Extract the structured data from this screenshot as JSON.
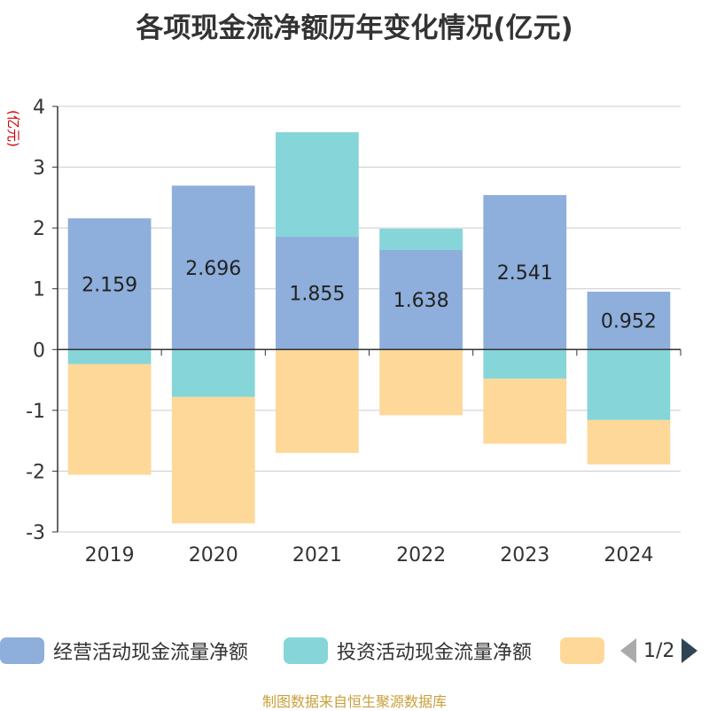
{
  "title": "各项现金流净额历年变化情况(亿元)",
  "source": "制图数据来自恒生聚源数据库",
  "legend_pager": "1/2",
  "colors": {
    "operating": "#8eaedb",
    "investing": "#86d5d8",
    "financing": "#fed898",
    "axis": "#333333",
    "grid": "#cccccc",
    "unit": "#cc0000"
  },
  "chart_data": {
    "type": "bar",
    "stacked": true,
    "title": "各项现金流净额历年变化情况(亿元)",
    "ylabel": "(亿元)",
    "ylim": [
      -3,
      4
    ],
    "yticks": [
      4,
      3,
      2,
      1,
      0,
      -1,
      -2,
      -3
    ],
    "grid": true,
    "legend_position": "bottom",
    "categories": [
      "2019",
      "2020",
      "2021",
      "2022",
      "2023",
      "2024"
    ],
    "series": [
      {
        "name": "经营活动现金流量净额",
        "color": "#8eaedb",
        "values": [
          2.159,
          2.696,
          1.855,
          1.638,
          2.541,
          0.952
        ],
        "labels": [
          "2.159",
          "2.696",
          "1.855",
          "1.638",
          "2.541",
          "0.952"
        ]
      },
      {
        "name": "投资活动现金流量净额",
        "color": "#86d5d8",
        "values": [
          -0.24,
          -0.78,
          1.72,
          0.35,
          -0.48,
          -1.16
        ]
      },
      {
        "name": "",
        "color": "#fed898",
        "values": [
          -1.82,
          -2.08,
          -1.7,
          -1.08,
          -1.07,
          -0.73
        ]
      }
    ]
  }
}
